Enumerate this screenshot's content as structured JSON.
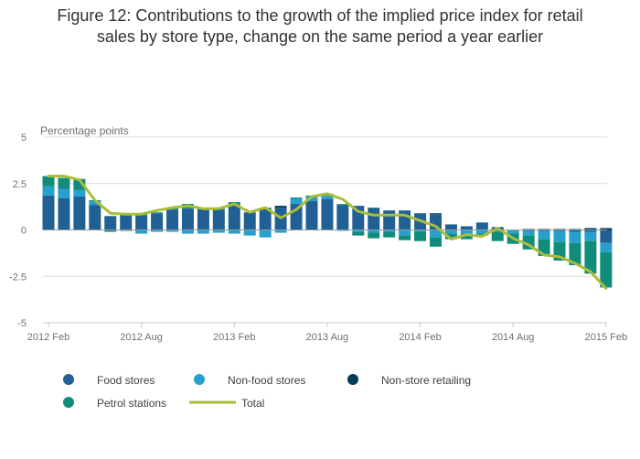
{
  "title_line1": "Figure 12: Contributions to the growth of the implied price index for retail",
  "title_line2": "sales by store type, change on the same period a year earlier",
  "chart_data": {
    "type": "bar",
    "stacked": true,
    "overlay_line": "Total",
    "ylabel": "Percentage points",
    "ylim": [
      -5,
      5
    ],
    "yticks": [
      5,
      2.5,
      0,
      -2.5,
      -5
    ],
    "ytick_labels": [
      "5",
      "2.5",
      "0",
      "-2.5",
      "-5"
    ],
    "xtick_labels": [
      "2012 Feb",
      "2012 Aug",
      "2013 Feb",
      "2013 Aug",
      "2014 Feb",
      "2014 Aug",
      "2015 Feb"
    ],
    "xtick_index": [
      0,
      6,
      12,
      18,
      24,
      30,
      36
    ],
    "grid": true,
    "legend_position": "bottom",
    "categories": [
      "2012 Feb",
      "2012 Mar",
      "2012 Apr",
      "2012 May",
      "2012 Jun",
      "2012 Jul",
      "2012 Aug",
      "2012 Sep",
      "2012 Oct",
      "2012 Nov",
      "2012 Dec",
      "2013 Jan",
      "2013 Feb",
      "2013 Mar",
      "2013 Apr",
      "2013 May",
      "2013 Jun",
      "2013 Jul",
      "2013 Aug",
      "2013 Sep",
      "2013 Oct",
      "2013 Nov",
      "2013 Dec",
      "2014 Jan",
      "2014 Feb",
      "2014 Mar",
      "2014 Apr",
      "2014 May",
      "2014 Jun",
      "2014 Jul",
      "2014 Aug",
      "2014 Sep",
      "2014 Oct",
      "2014 Nov",
      "2014 Dec",
      "2015 Jan",
      "2015 Feb"
    ],
    "series": [
      {
        "name": "Food stores",
        "color": "#206095",
        "values": [
          1.85,
          1.7,
          1.8,
          1.35,
          0.75,
          0.8,
          0.8,
          0.9,
          1.1,
          1.15,
          1.15,
          1.1,
          1.4,
          0.95,
          1.2,
          1.2,
          1.4,
          1.55,
          1.65,
          1.35,
          1.3,
          1.2,
          1.05,
          1.05,
          0.9,
          0.85,
          0.3,
          0.2,
          0.4,
          0.1,
          0.0,
          -0.05,
          -0.05,
          -0.05,
          -0.1,
          -0.1,
          -0.7
        ]
      },
      {
        "name": "Non-food stores",
        "color": "#27a0cc",
        "values": [
          0.5,
          0.55,
          0.35,
          0.2,
          0.0,
          0.05,
          -0.2,
          -0.1,
          -0.1,
          -0.2,
          -0.2,
          -0.15,
          -0.2,
          -0.3,
          -0.4,
          -0.15,
          0.3,
          0.25,
          0.25,
          -0.05,
          -0.1,
          -0.15,
          -0.1,
          -0.3,
          -0.1,
          -0.4,
          -0.2,
          -0.2,
          -0.2,
          -0.1,
          -0.2,
          -0.25,
          -0.45,
          -0.6,
          -0.6,
          -0.5,
          -0.5
        ]
      },
      {
        "name": "Non-store retailing",
        "color": "#003c57",
        "values": [
          0.0,
          0.05,
          0.0,
          0.0,
          0.0,
          0.0,
          0.0,
          0.0,
          0.0,
          0.0,
          0.0,
          0.0,
          0.0,
          0.0,
          0.0,
          0.1,
          0.0,
          0.0,
          0.0,
          0.0,
          0.0,
          0.0,
          0.0,
          0.0,
          0.0,
          0.05,
          0.0,
          0.0,
          0.0,
          0.05,
          0.0,
          0.05,
          0.05,
          0.05,
          0.05,
          0.1,
          0.1
        ]
      },
      {
        "name": "Petrol stations",
        "color": "#118c7b",
        "values": [
          0.55,
          0.5,
          0.6,
          0.05,
          -0.1,
          -0.05,
          0.05,
          0.05,
          0.1,
          0.25,
          0.05,
          0.05,
          0.1,
          0.0,
          0.0,
          0.0,
          0.05,
          0.05,
          0.05,
          0.05,
          -0.2,
          -0.3,
          -0.3,
          -0.25,
          -0.5,
          -0.5,
          -0.3,
          -0.3,
          -0.1,
          -0.5,
          -0.55,
          -0.75,
          -0.9,
          -1.0,
          -1.2,
          -1.75,
          -1.9
        ]
      },
      {
        "name": "Total",
        "color": "#a8bd3a",
        "type": "line",
        "values": [
          2.9,
          2.9,
          2.7,
          1.6,
          0.9,
          0.85,
          0.85,
          1.05,
          1.2,
          1.3,
          1.15,
          1.15,
          1.4,
          0.95,
          1.2,
          0.65,
          1.1,
          1.8,
          1.95,
          1.65,
          1.0,
          0.8,
          0.8,
          0.8,
          0.5,
          0.2,
          -0.5,
          -0.25,
          -0.35,
          0.1,
          -0.45,
          -0.8,
          -1.35,
          -1.45,
          -1.8,
          -2.25,
          -3.15
        ]
      }
    ]
  },
  "legend": {
    "food": "Food stores",
    "nonfood": "Non-food stores",
    "nonstore": "Non-store retailing",
    "petrol": "Petrol stations",
    "total": "Total"
  },
  "colors": {
    "food": "#206095",
    "nonfood": "#27a0cc",
    "nonstore": "#003c57",
    "petrol": "#118c7b",
    "total": "#a8bd3a",
    "grid": "#dcdcdc",
    "zero": "#9a9a9a"
  }
}
